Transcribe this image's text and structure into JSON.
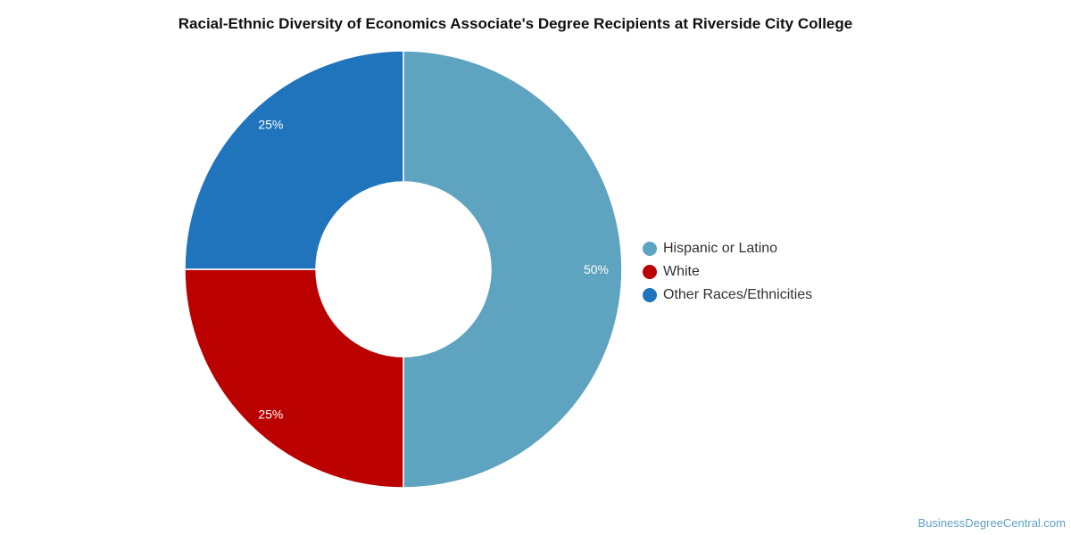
{
  "chart_data": {
    "type": "pie",
    "title": "Racial-Ethnic Diversity of Economics Associate's Degree Recipients at Riverside City College",
    "series": [
      {
        "name": "Hispanic or Latino",
        "value": 50,
        "label": "50%",
        "color": "#5ea3c0"
      },
      {
        "name": "White",
        "value": 25,
        "label": "25%",
        "color": "#bb0000"
      },
      {
        "name": "Other Races/Ethnicities",
        "value": 25,
        "label": "25%",
        "color": "#1f74bb"
      }
    ],
    "hole": true,
    "legend_placement": "right"
  },
  "credit": "BusinessDegreeCentral.com"
}
